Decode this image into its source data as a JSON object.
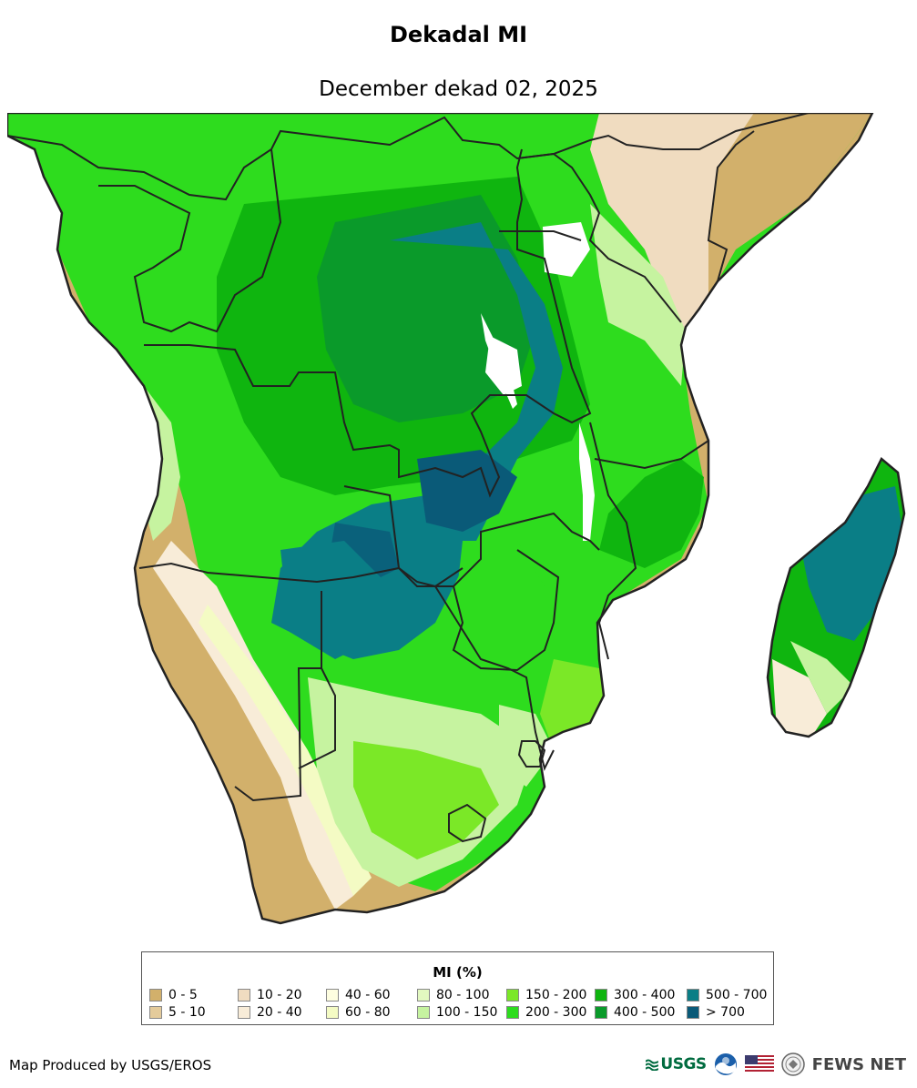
{
  "title": "Dekadal MI",
  "subtitle": "December dekad 02, 2025",
  "legend": {
    "title": "MI (%)",
    "items": [
      {
        "label": "0 - 5",
        "color": "#d2b06b"
      },
      {
        "label": "5 - 10",
        "color": "#e4cb9b"
      },
      {
        "label": "10 - 20",
        "color": "#f0dcc0"
      },
      {
        "label": "20 - 40",
        "color": "#f8ecd8"
      },
      {
        "label": "40 - 60",
        "color": "#fdfde0"
      },
      {
        "label": "60 - 80",
        "color": "#f4fbc4"
      },
      {
        "label": "80 - 100",
        "color": "#e2f8c0"
      },
      {
        "label": "100 - 150",
        "color": "#c6f3a0"
      },
      {
        "label": "150 - 200",
        "color": "#7be827"
      },
      {
        "label": "200 - 300",
        "color": "#2edc1e"
      },
      {
        "label": "300 - 400",
        "color": "#0fb50f"
      },
      {
        "label": "400 - 500",
        "color": "#0a9a2a"
      },
      {
        "label": "500 - 700",
        "color": "#0a7e86"
      },
      {
        "label": "> 700",
        "color": "#0a5a78"
      }
    ]
  },
  "credit": "Map Produced by USGS/EROS",
  "logos": {
    "usgs": "USGS",
    "fews": "FEWS NET"
  }
}
